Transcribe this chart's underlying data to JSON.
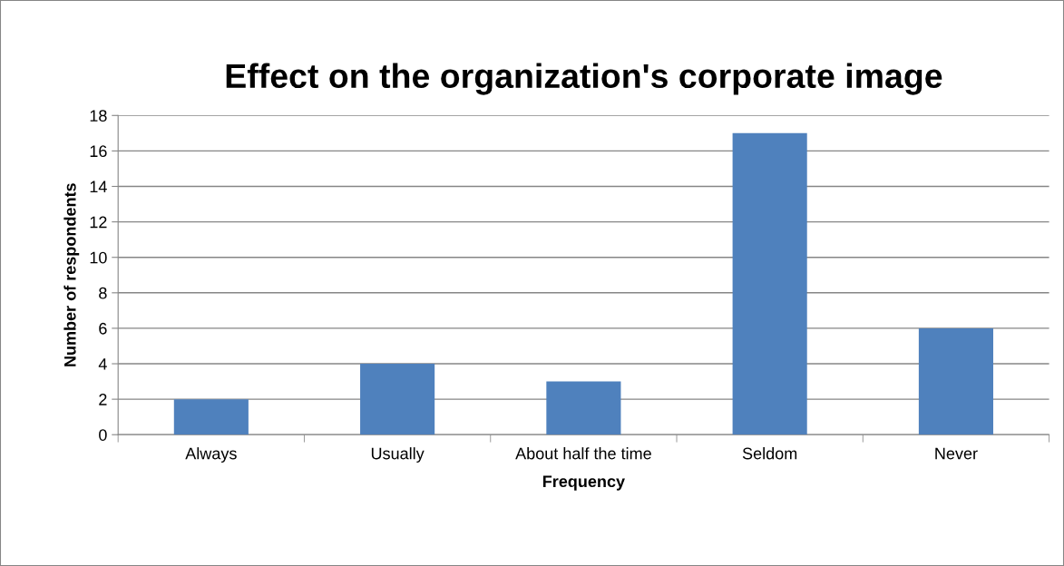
{
  "chart_data": {
    "type": "bar",
    "title": "Effect on the organization's corporate image",
    "xlabel": "Frequency",
    "ylabel": "Number of respondents",
    "categories": [
      "Always",
      "Usually",
      "About half the time",
      "Seldom",
      "Never"
    ],
    "values": [
      2,
      4,
      3,
      17,
      6
    ],
    "color": "#4f81bd",
    "ylim": [
      0,
      18
    ],
    "yticks": [
      0,
      2,
      4,
      6,
      8,
      10,
      12,
      14,
      16,
      18
    ],
    "grid": "y",
    "legend": false
  }
}
